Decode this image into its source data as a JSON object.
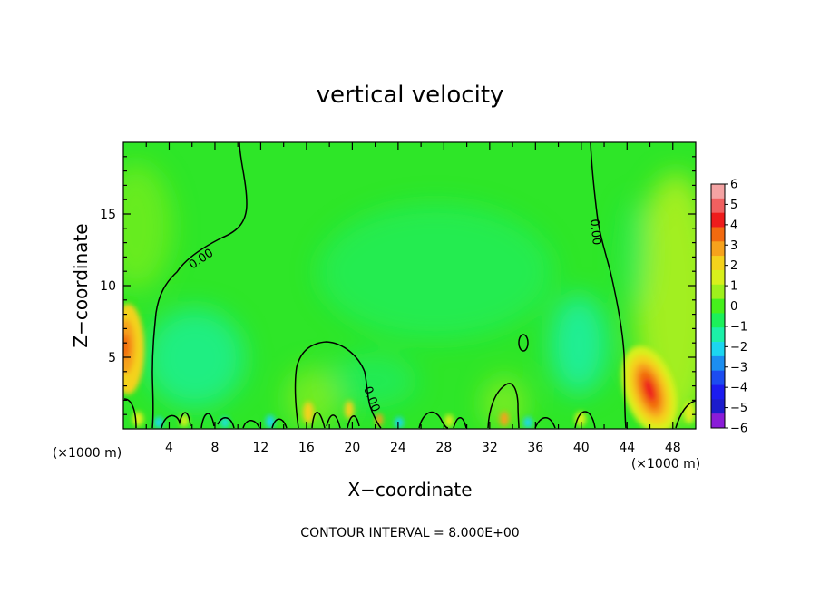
{
  "chart_data": {
    "type": "heatmap",
    "title": "vertical velocity",
    "xlabel": "X−coordinate",
    "ylabel": "Z−coordinate",
    "x_unit": "(×1000 m)",
    "y_unit": "(×1000 m)",
    "xlim": [
      0,
      50
    ],
    "ylim": [
      0,
      20
    ],
    "x_ticks": [
      4,
      8,
      12,
      16,
      20,
      24,
      28,
      32,
      36,
      40,
      44,
      48
    ],
    "y_ticks": [
      5,
      10,
      15
    ],
    "footer": "CONTOUR INTERVAL = 8.000E+00",
    "contour_label": "0.00",
    "colorbar": {
      "min": -6,
      "max": 6,
      "labels": [
        "6",
        "5",
        "4",
        "3",
        "2",
        "1",
        "0",
        "−1",
        "−2",
        "−3",
        "−4",
        "−5",
        "−6"
      ],
      "colors": [
        "#f4a3a3",
        "#f06060",
        "#ee1c1c",
        "#f26a10",
        "#f6a21c",
        "#f4d21c",
        "#d8f01c",
        "#9ef01c",
        "#46f01c",
        "#1cf05a",
        "#1cf0a8",
        "#1cd6f0",
        "#1c8ef0",
        "#1c4cf0",
        "#1c1cf0",
        "#1c1ccc",
        "#8a1cd8"
      ]
    },
    "features": [
      {
        "kind": "updraft",
        "x": 46,
        "z": 3,
        "value": 4.5
      },
      {
        "kind": "updraft",
        "x": 0.5,
        "z": 5.5,
        "value": 3.2
      },
      {
        "kind": "updraft",
        "x": 48.5,
        "z": 8,
        "value": 1.4
      },
      {
        "kind": "downdraft",
        "x": 6,
        "z": 4.5,
        "value": -1.3
      },
      {
        "kind": "downdraft",
        "x": 39,
        "z": 6,
        "value": -1.0
      },
      {
        "kind": "downdraft",
        "x": 30,
        "z": 10,
        "value": -0.6
      }
    ]
  }
}
